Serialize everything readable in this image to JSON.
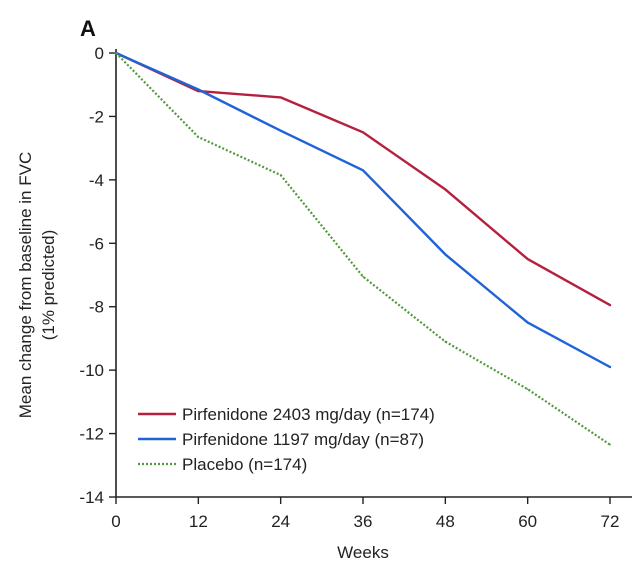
{
  "chart_data": {
    "type": "line",
    "panel_label": "A",
    "xlabel": "Weeks",
    "ylabel_lines": [
      "Mean change from baseline in FVC",
      "(1% predicted)"
    ],
    "x": [
      0,
      12,
      24,
      36,
      48,
      60,
      72
    ],
    "x_ticks": [
      0,
      12,
      24,
      36,
      48,
      60,
      72
    ],
    "y_ticks": [
      0,
      -2,
      -4,
      -6,
      -8,
      -10,
      -12,
      -14
    ],
    "xlim": [
      0,
      72
    ],
    "ylim": [
      -14,
      0
    ],
    "grid": false,
    "legend_position": "bottom-left",
    "series": [
      {
        "name": "Pirfenidone 2403 mg/day (n=174)",
        "color": "#b5203f",
        "dash": "solid",
        "values": [
          0,
          -1.2,
          -1.4,
          -2.5,
          -4.3,
          -6.5,
          -7.95
        ]
      },
      {
        "name": "Pirfenidone 1197 mg/day (n=87)",
        "color": "#1f63d6",
        "dash": "solid",
        "values": [
          0,
          -1.15,
          -2.45,
          -3.7,
          -6.35,
          -8.5,
          -9.9
        ]
      },
      {
        "name": "Placebo (n=174)",
        "color": "#4e9a3a",
        "dash": "dotted",
        "values": [
          0,
          -2.65,
          -3.85,
          -7.05,
          -9.1,
          -10.6,
          -12.35
        ]
      }
    ]
  }
}
